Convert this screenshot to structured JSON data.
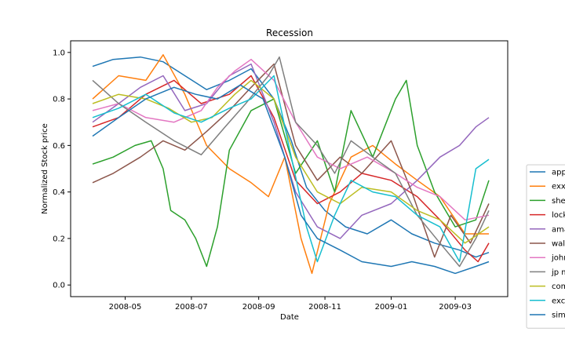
{
  "chart_data": {
    "type": "line",
    "title": "Recession",
    "xlabel": "Date",
    "ylabel": "Normalized Stock price",
    "x_range": [
      "2008-04-01",
      "2009-04-01"
    ],
    "ylim": [
      -0.05,
      1.05
    ],
    "x_ticks": [
      "2008-05-01",
      "2008-07-01",
      "2008-09-01",
      "2008-11-01",
      "2009-01-01",
      "2009-03-01"
    ],
    "x_tick_labels": [
      "2008-05",
      "2008-07",
      "2008-09",
      "2008-11",
      "2009-01",
      "2009-03"
    ],
    "y_ticks": [
      0.0,
      0.2,
      0.4,
      0.6,
      0.8,
      1.0
    ],
    "y_tick_labels": [
      "0.0",
      "0.2",
      "0.4",
      "0.6",
      "0.8",
      "1.0"
    ],
    "grid": false,
    "legend_position": "right, outside plot (clipped)",
    "series": [
      {
        "name": "app",
        "color": "#1f77b4",
        "points": [
          [
            "2008-04-01",
            0.94
          ],
          [
            "2008-04-20",
            0.97
          ],
          [
            "2008-05-15",
            0.98
          ],
          [
            "2008-06-05",
            0.96
          ],
          [
            "2008-06-25",
            0.9
          ],
          [
            "2008-07-15",
            0.84
          ],
          [
            "2008-08-05",
            0.88
          ],
          [
            "2008-08-25",
            0.93
          ],
          [
            "2008-09-15",
            0.8
          ],
          [
            "2008-10-01",
            0.62
          ],
          [
            "2008-10-15",
            0.42
          ],
          [
            "2008-11-01",
            0.32
          ],
          [
            "2008-11-20",
            0.25
          ],
          [
            "2008-12-10",
            0.22
          ],
          [
            "2009-01-01",
            0.28
          ],
          [
            "2009-01-20",
            0.22
          ],
          [
            "2009-02-10",
            0.18
          ],
          [
            "2009-03-05",
            0.15
          ],
          [
            "2009-03-20",
            0.12
          ],
          [
            "2009-04-01",
            0.14
          ]
        ]
      },
      {
        "name": "exx",
        "color": "#ff7f0e",
        "points": [
          [
            "2008-04-01",
            0.8
          ],
          [
            "2008-04-25",
            0.9
          ],
          [
            "2008-05-20",
            0.88
          ],
          [
            "2008-06-05",
            0.99
          ],
          [
            "2008-06-25",
            0.82
          ],
          [
            "2008-07-15",
            0.6
          ],
          [
            "2008-08-05",
            0.5
          ],
          [
            "2008-08-25",
            0.44
          ],
          [
            "2008-09-10",
            0.38
          ],
          [
            "2008-09-25",
            0.55
          ],
          [
            "2008-10-10",
            0.2
          ],
          [
            "2008-10-20",
            0.05
          ],
          [
            "2008-11-05",
            0.35
          ],
          [
            "2008-11-25",
            0.55
          ],
          [
            "2008-12-15",
            0.6
          ],
          [
            "2009-01-05",
            0.52
          ],
          [
            "2009-01-25",
            0.45
          ],
          [
            "2009-02-15",
            0.38
          ],
          [
            "2009-03-10",
            0.22
          ],
          [
            "2009-04-01",
            0.22
          ]
        ]
      },
      {
        "name": "she",
        "color": "#2ca02c",
        "points": [
          [
            "2008-04-01",
            0.52
          ],
          [
            "2008-04-20",
            0.55
          ],
          [
            "2008-05-10",
            0.6
          ],
          [
            "2008-05-25",
            0.62
          ],
          [
            "2008-06-05",
            0.5
          ],
          [
            "2008-06-12",
            0.32
          ],
          [
            "2008-06-25",
            0.28
          ],
          [
            "2008-07-05",
            0.2
          ],
          [
            "2008-07-15",
            0.08
          ],
          [
            "2008-07-25",
            0.25
          ],
          [
            "2008-08-05",
            0.58
          ],
          [
            "2008-08-25",
            0.75
          ],
          [
            "2008-09-15",
            0.8
          ],
          [
            "2008-10-05",
            0.48
          ],
          [
            "2008-10-25",
            0.62
          ],
          [
            "2008-11-10",
            0.4
          ],
          [
            "2008-11-25",
            0.75
          ],
          [
            "2008-12-15",
            0.55
          ],
          [
            "2009-01-05",
            0.8
          ],
          [
            "2009-01-15",
            0.88
          ],
          [
            "2009-01-25",
            0.6
          ],
          [
            "2009-02-10",
            0.4
          ],
          [
            "2009-03-01",
            0.25
          ],
          [
            "2009-03-20",
            0.28
          ],
          [
            "2009-04-01",
            0.45
          ]
        ]
      },
      {
        "name": "lock",
        "color": "#d62728",
        "points": [
          [
            "2008-04-01",
            0.68
          ],
          [
            "2008-04-25",
            0.72
          ],
          [
            "2008-05-20",
            0.82
          ],
          [
            "2008-06-15",
            0.88
          ],
          [
            "2008-07-10",
            0.78
          ],
          [
            "2008-08-05",
            0.82
          ],
          [
            "2008-08-25",
            0.9
          ],
          [
            "2008-09-15",
            0.72
          ],
          [
            "2008-10-05",
            0.45
          ],
          [
            "2008-10-25",
            0.35
          ],
          [
            "2008-11-15",
            0.4
          ],
          [
            "2008-12-05",
            0.48
          ],
          [
            "2009-01-01",
            0.45
          ],
          [
            "2009-01-25",
            0.38
          ],
          [
            "2009-02-15",
            0.28
          ],
          [
            "2009-03-10",
            0.15
          ],
          [
            "2009-03-22",
            0.1
          ],
          [
            "2009-04-01",
            0.18
          ]
        ]
      },
      {
        "name": "ama",
        "color": "#9467bd",
        "points": [
          [
            "2008-04-01",
            0.7
          ],
          [
            "2008-04-25",
            0.78
          ],
          [
            "2008-05-15",
            0.85
          ],
          [
            "2008-06-05",
            0.9
          ],
          [
            "2008-06-25",
            0.75
          ],
          [
            "2008-07-15",
            0.78
          ],
          [
            "2008-08-05",
            0.9
          ],
          [
            "2008-08-25",
            0.95
          ],
          [
            "2008-09-15",
            0.7
          ],
          [
            "2008-10-05",
            0.4
          ],
          [
            "2008-10-25",
            0.25
          ],
          [
            "2008-11-15",
            0.2
          ],
          [
            "2008-12-05",
            0.3
          ],
          [
            "2009-01-01",
            0.35
          ],
          [
            "2009-01-25",
            0.45
          ],
          [
            "2009-02-15",
            0.55
          ],
          [
            "2009-03-05",
            0.6
          ],
          [
            "2009-03-20",
            0.68
          ],
          [
            "2009-04-01",
            0.72
          ]
        ]
      },
      {
        "name": "wal",
        "color": "#8c564b",
        "points": [
          [
            "2008-04-01",
            0.44
          ],
          [
            "2008-04-20",
            0.48
          ],
          [
            "2008-05-15",
            0.55
          ],
          [
            "2008-06-05",
            0.62
          ],
          [
            "2008-06-25",
            0.58
          ],
          [
            "2008-07-15",
            0.66
          ],
          [
            "2008-08-05",
            0.75
          ],
          [
            "2008-08-25",
            0.85
          ],
          [
            "2008-09-15",
            0.95
          ],
          [
            "2008-10-05",
            0.6
          ],
          [
            "2008-10-25",
            0.45
          ],
          [
            "2008-11-15",
            0.55
          ],
          [
            "2008-12-05",
            0.48
          ],
          [
            "2009-01-01",
            0.62
          ],
          [
            "2009-01-20",
            0.4
          ],
          [
            "2009-02-10",
            0.12
          ],
          [
            "2009-02-25",
            0.3
          ],
          [
            "2009-03-15",
            0.18
          ],
          [
            "2009-04-01",
            0.35
          ]
        ]
      },
      {
        "name": "john",
        "color": "#e377c2",
        "points": [
          [
            "2008-04-01",
            0.75
          ],
          [
            "2008-04-25",
            0.78
          ],
          [
            "2008-05-20",
            0.72
          ],
          [
            "2008-06-15",
            0.7
          ],
          [
            "2008-07-10",
            0.75
          ],
          [
            "2008-07-25",
            0.85
          ],
          [
            "2008-08-10",
            0.92
          ],
          [
            "2008-08-25",
            0.97
          ],
          [
            "2008-09-15",
            0.88
          ],
          [
            "2008-10-05",
            0.7
          ],
          [
            "2008-10-25",
            0.55
          ],
          [
            "2008-11-15",
            0.5
          ],
          [
            "2008-12-10",
            0.55
          ],
          [
            "2009-01-05",
            0.48
          ],
          [
            "2009-01-25",
            0.42
          ],
          [
            "2009-02-15",
            0.38
          ],
          [
            "2009-03-10",
            0.28
          ],
          [
            "2009-04-01",
            0.3
          ]
        ]
      },
      {
        "name": "jp m",
        "color": "#7f7f7f",
        "points": [
          [
            "2008-04-01",
            0.88
          ],
          [
            "2008-04-25",
            0.78
          ],
          [
            "2008-05-20",
            0.7
          ],
          [
            "2008-06-15",
            0.62
          ],
          [
            "2008-07-10",
            0.56
          ],
          [
            "2008-08-01",
            0.68
          ],
          [
            "2008-08-20",
            0.78
          ],
          [
            "2008-09-10",
            0.9
          ],
          [
            "2008-09-20",
            0.98
          ],
          [
            "2008-10-05",
            0.7
          ],
          [
            "2008-10-25",
            0.6
          ],
          [
            "2008-11-10",
            0.48
          ],
          [
            "2008-11-25",
            0.62
          ],
          [
            "2008-12-15",
            0.55
          ],
          [
            "2009-01-05",
            0.48
          ],
          [
            "2009-01-25",
            0.3
          ],
          [
            "2009-02-15",
            0.18
          ],
          [
            "2009-03-05",
            0.08
          ],
          [
            "2009-03-20",
            0.2
          ],
          [
            "2009-04-01",
            0.32
          ]
        ]
      },
      {
        "name": "com",
        "color": "#bcbd22",
        "points": [
          [
            "2008-04-01",
            0.78
          ],
          [
            "2008-04-25",
            0.82
          ],
          [
            "2008-05-20",
            0.8
          ],
          [
            "2008-06-10",
            0.76
          ],
          [
            "2008-07-01",
            0.7
          ],
          [
            "2008-07-20",
            0.72
          ],
          [
            "2008-08-10",
            0.82
          ],
          [
            "2008-08-25",
            0.88
          ],
          [
            "2008-09-15",
            0.8
          ],
          [
            "2008-10-05",
            0.55
          ],
          [
            "2008-10-25",
            0.4
          ],
          [
            "2008-11-15",
            0.35
          ],
          [
            "2008-12-05",
            0.42
          ],
          [
            "2009-01-01",
            0.4
          ],
          [
            "2009-01-25",
            0.32
          ],
          [
            "2009-02-15",
            0.28
          ],
          [
            "2009-03-10",
            0.18
          ],
          [
            "2009-04-01",
            0.25
          ]
        ]
      },
      {
        "name": "exc",
        "color": "#17becf",
        "points": [
          [
            "2008-04-01",
            0.72
          ],
          [
            "2008-04-25",
            0.76
          ],
          [
            "2008-05-20",
            0.82
          ],
          [
            "2008-06-15",
            0.74
          ],
          [
            "2008-07-10",
            0.7
          ],
          [
            "2008-08-05",
            0.76
          ],
          [
            "2008-08-25",
            0.8
          ],
          [
            "2008-09-15",
            0.9
          ],
          [
            "2008-10-01",
            0.55
          ],
          [
            "2008-10-15",
            0.25
          ],
          [
            "2008-10-25",
            0.1
          ],
          [
            "2008-11-10",
            0.3
          ],
          [
            "2008-11-25",
            0.45
          ],
          [
            "2008-12-15",
            0.4
          ],
          [
            "2009-01-05",
            0.38
          ],
          [
            "2009-01-25",
            0.3
          ],
          [
            "2009-02-15",
            0.25
          ],
          [
            "2009-03-05",
            0.1
          ],
          [
            "2009-03-20",
            0.5
          ],
          [
            "2009-04-01",
            0.54
          ]
        ]
      },
      {
        "name": "sim",
        "color": "#1f77b4",
        "points": [
          [
            "2008-04-01",
            0.64
          ],
          [
            "2008-04-25",
            0.72
          ],
          [
            "2008-05-20",
            0.8
          ],
          [
            "2008-06-15",
            0.85
          ],
          [
            "2008-07-05",
            0.82
          ],
          [
            "2008-07-25",
            0.8
          ],
          [
            "2008-08-15",
            0.86
          ],
          [
            "2008-09-05",
            0.8
          ],
          [
            "2008-09-25",
            0.55
          ],
          [
            "2008-10-10",
            0.3
          ],
          [
            "2008-10-25",
            0.2
          ],
          [
            "2008-11-15",
            0.15
          ],
          [
            "2008-12-05",
            0.1
          ],
          [
            "2009-01-01",
            0.08
          ],
          [
            "2009-01-20",
            0.1
          ],
          [
            "2009-02-10",
            0.08
          ],
          [
            "2009-03-01",
            0.05
          ],
          [
            "2009-03-20",
            0.08
          ],
          [
            "2009-04-01",
            0.1
          ]
        ]
      }
    ]
  }
}
